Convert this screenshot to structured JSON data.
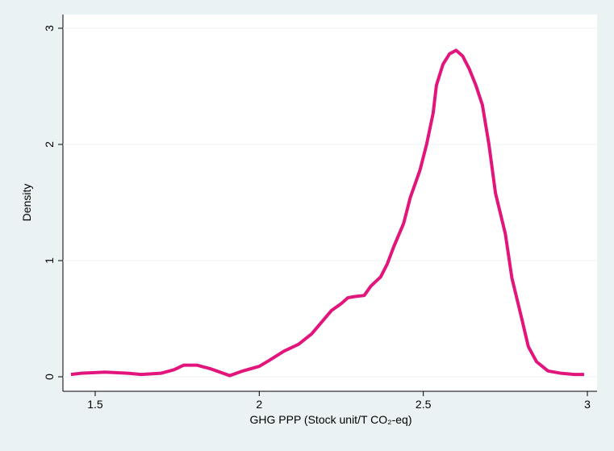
{
  "chart_data": {
    "type": "line",
    "x_label": "GHG PPP (Stock unit/T CO₂-eq)",
    "y_label": "Density",
    "x": [
      1.426,
      1.456,
      1.53,
      1.6,
      1.64,
      1.7,
      1.74,
      1.77,
      1.81,
      1.85,
      1.91,
      1.95,
      2.0,
      2.03,
      2.075,
      2.12,
      2.16,
      2.19,
      2.22,
      2.25,
      2.27,
      2.29,
      2.32,
      2.34,
      2.37,
      2.39,
      2.41,
      2.44,
      2.46,
      2.49,
      2.51,
      2.53,
      2.54,
      2.56,
      2.58,
      2.6,
      2.62,
      2.64,
      2.66,
      2.68,
      2.7,
      2.72,
      2.75,
      2.77,
      2.8,
      2.82,
      2.845,
      2.88,
      2.92,
      2.96,
      2.99
    ],
    "series": [
      {
        "name": "Density",
        "color": "#e2157c",
        "values": [
          0.02,
          0.03,
          0.04,
          0.03,
          0.02,
          0.03,
          0.06,
          0.1,
          0.1,
          0.07,
          0.01,
          0.05,
          0.09,
          0.14,
          0.22,
          0.28,
          0.37,
          0.47,
          0.57,
          0.63,
          0.68,
          0.69,
          0.7,
          0.78,
          0.86,
          0.97,
          1.12,
          1.32,
          1.54,
          1.78,
          2.0,
          2.27,
          2.51,
          2.69,
          2.78,
          2.81,
          2.76,
          2.65,
          2.51,
          2.34,
          2.0,
          1.58,
          1.23,
          0.85,
          0.5,
          0.26,
          0.13,
          0.05,
          0.03,
          0.02,
          0.02
        ]
      }
    ],
    "xlim": [
      1.4017,
      3.0295
    ],
    "xticks": [
      1.5,
      2,
      2.5,
      3
    ],
    "ylim": [
      -0.125,
      3.118
    ],
    "yticks": [
      0,
      1,
      2,
      3
    ],
    "grid": true
  }
}
